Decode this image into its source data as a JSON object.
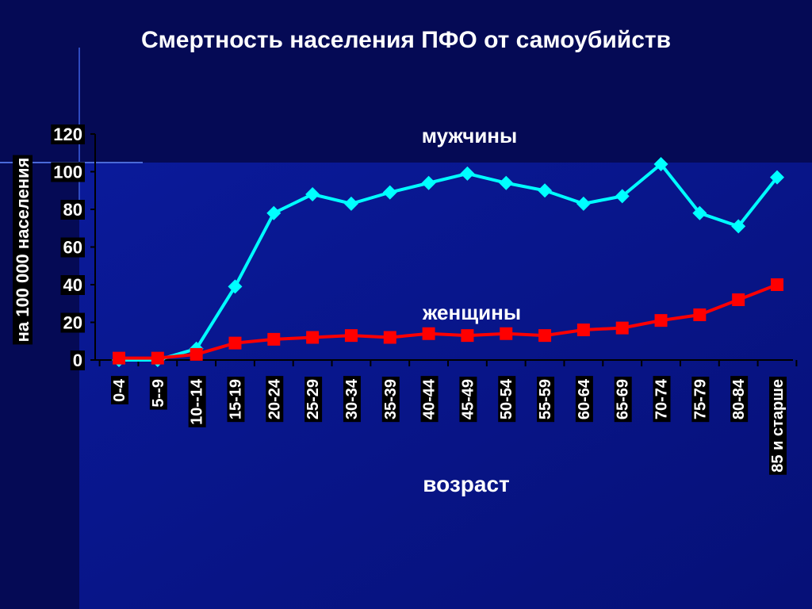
{
  "chart_data": {
    "type": "line",
    "title": "Смертность населения ПФО от самоубийств",
    "y_label": "на 100 000 населения",
    "x_label": "возраст",
    "categories": [
      "0-4",
      "5--9",
      "10--14",
      "15-19",
      "20-24",
      "25-29",
      "30-34",
      "35-39",
      "40-44",
      "45-49",
      "50-54",
      "55-59",
      "60-64",
      "65-69",
      "70-74",
      "75-79",
      "80-84",
      "85 и старше"
    ],
    "series": [
      {
        "name": "мужчины",
        "color": "#00ffff",
        "marker": "diamond",
        "values": [
          0,
          0,
          6,
          39,
          78,
          88,
          83,
          89,
          94,
          99,
          94,
          90,
          83,
          87,
          104,
          78,
          71,
          97
        ]
      },
      {
        "name": "женщины",
        "color": "#ff0000",
        "marker": "square",
        "values": [
          1,
          1,
          3,
          9,
          11,
          12,
          13,
          12,
          14,
          13,
          14,
          13,
          16,
          17,
          21,
          24,
          32,
          40
        ]
      }
    ],
    "ylim": [
      0,
      120
    ],
    "yticks": [
      0,
      20,
      40,
      60,
      80,
      100,
      120
    ]
  }
}
